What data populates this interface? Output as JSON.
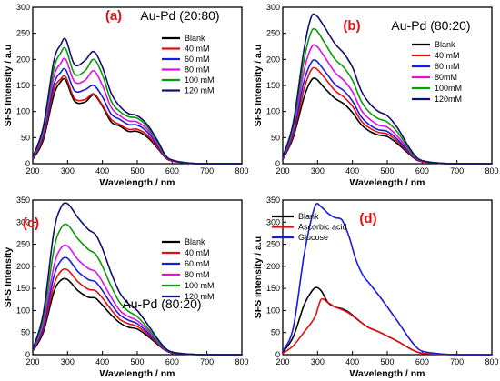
{
  "chart_data": [
    {
      "type": "line",
      "panel_label": "(a)",
      "title": "Au-Pd (20:80)",
      "xlabel": "Wavelength / nm",
      "ylabel": "SFS Intensity / a.u",
      "xlim": [
        200,
        800
      ],
      "ylim": [
        0,
        300
      ],
      "xticks": [
        200,
        300,
        400,
        500,
        600,
        700,
        800
      ],
      "yticks": [
        0,
        50,
        100,
        150,
        200,
        250,
        300
      ],
      "legend": "right",
      "x": [
        200,
        230,
        260,
        280,
        295,
        320,
        350,
        375,
        400,
        425,
        450,
        475,
        500,
        530,
        560,
        580,
        600,
        650,
        700,
        800
      ],
      "series": [
        {
          "name": "Blank",
          "color": "#000000",
          "values": [
            8,
            45,
            130,
            157,
            160,
            120,
            118,
            132,
            110,
            80,
            72,
            62,
            62,
            50,
            28,
            12,
            5,
            1,
            0,
            0
          ]
        },
        {
          "name": "40 mM",
          "color": "#e01010",
          "values": [
            9,
            50,
            140,
            162,
            166,
            125,
            123,
            134,
            112,
            85,
            75,
            66,
            66,
            54,
            30,
            13,
            5,
            1,
            0,
            0
          ]
        },
        {
          "name": "60 mM",
          "color": "#1a1adb",
          "values": [
            10,
            55,
            150,
            175,
            180,
            140,
            142,
            150,
            128,
            95,
            85,
            75,
            74,
            60,
            33,
            14,
            6,
            1,
            0,
            0
          ]
        },
        {
          "name": "80 mM",
          "color": "#e010e0",
          "values": [
            11,
            60,
            165,
            192,
            200,
            157,
            160,
            178,
            150,
            108,
            92,
            82,
            80,
            65,
            36,
            15,
            6,
            1,
            0,
            0
          ]
        },
        {
          "name": "100 mM",
          "color": "#0a9a0a",
          "values": [
            12,
            65,
            180,
            212,
            220,
            172,
            178,
            200,
            170,
            120,
            100,
            90,
            87,
            70,
            39,
            16,
            7,
            1,
            0,
            0
          ]
        },
        {
          "name": "120 mM",
          "color": "#10106e",
          "values": [
            13,
            70,
            195,
            228,
            238,
            190,
            198,
            215,
            185,
            135,
            110,
            96,
            92,
            74,
            42,
            17,
            7,
            1,
            0,
            0
          ]
        }
      ]
    },
    {
      "type": "line",
      "panel_label": "(b)",
      "title": "Au-Pd (80:20)",
      "xlabel": "Wavelength / nm",
      "ylabel": "SFS Intensity / a.u",
      "xlim": [
        200,
        800
      ],
      "ylim": [
        0,
        300
      ],
      "xticks": [
        200,
        300,
        400,
        500,
        600,
        700,
        800
      ],
      "yticks": [
        0,
        50,
        100,
        150,
        200,
        250,
        300
      ],
      "legend": "right",
      "x": [
        200,
        230,
        260,
        280,
        295,
        320,
        350,
        375,
        400,
        425,
        450,
        475,
        500,
        530,
        560,
        580,
        600,
        650,
        700,
        800
      ],
      "series": [
        {
          "name": "Blank",
          "color": "#000000",
          "values": [
            8,
            50,
            125,
            158,
            163,
            145,
            125,
            115,
            98,
            75,
            62,
            55,
            52,
            38,
            20,
            9,
            4,
            1,
            0,
            0
          ]
        },
        {
          "name": "40 mM",
          "color": "#e01010",
          "values": [
            9,
            55,
            140,
            178,
            183,
            165,
            140,
            128,
            110,
            82,
            68,
            60,
            57,
            42,
            22,
            10,
            4,
            1,
            0,
            0
          ]
        },
        {
          "name": "60 mM",
          "color": "#1a1adb",
          "values": [
            10,
            60,
            155,
            192,
            198,
            178,
            152,
            140,
            120,
            90,
            74,
            65,
            62,
            46,
            24,
            11,
            5,
            1,
            0,
            0
          ]
        },
        {
          "name": "80mM",
          "color": "#e010e0",
          "values": [
            11,
            66,
            175,
            220,
            227,
            205,
            175,
            160,
            138,
            103,
            85,
            74,
            70,
            52,
            27,
            12,
            5,
            1,
            0,
            0
          ]
        },
        {
          "name": "100mM",
          "color": "#0a9a0a",
          "values": [
            12,
            72,
            195,
            250,
            257,
            232,
            200,
            185,
            160,
            120,
            98,
            86,
            80,
            60,
            30,
            13,
            6,
            1,
            0,
            0
          ]
        },
        {
          "name": "120mM",
          "color": "#10106e",
          "values": [
            13,
            78,
            215,
            278,
            285,
            262,
            230,
            212,
            185,
            140,
            115,
            100,
            92,
            68,
            34,
            15,
            6,
            1,
            0,
            0
          ]
        }
      ]
    },
    {
      "type": "line",
      "panel_label": "(c)",
      "title": "Au-Pd (80:20)",
      "xlabel": "Wavelength / nm",
      "ylabel": "SFS Intensity",
      "xlim": [
        200,
        800
      ],
      "ylim": [
        0,
        350
      ],
      "xticks": [
        200,
        300,
        400,
        500,
        600,
        700,
        800
      ],
      "yticks": [
        0,
        50,
        100,
        150,
        200,
        250,
        300,
        350
      ],
      "legend": "right",
      "x": [
        200,
        230,
        260,
        280,
        300,
        330,
        360,
        380,
        400,
        425,
        450,
        475,
        500,
        530,
        560,
        580,
        600,
        650,
        700,
        800
      ],
      "series": [
        {
          "name": "Blank",
          "color": "#000000",
          "values": [
            8,
            50,
            140,
            168,
            170,
            145,
            130,
            128,
            112,
            90,
            72,
            62,
            58,
            42,
            22,
            10,
            4,
            1,
            0,
            0
          ]
        },
        {
          "name": "40 mM",
          "color": "#e01010",
          "values": [
            9,
            56,
            155,
            188,
            192,
            165,
            148,
            145,
            128,
            102,
            80,
            70,
            64,
            46,
            24,
            11,
            5,
            1,
            0,
            0
          ]
        },
        {
          "name": "60 mM",
          "color": "#1a1adb",
          "values": [
            10,
            62,
            175,
            212,
            218,
            188,
            170,
            165,
            145,
            115,
            90,
            78,
            70,
            50,
            26,
            12,
            5,
            1,
            0,
            0
          ]
        },
        {
          "name": "80 mM",
          "color": "#e010e0",
          "values": [
            11,
            70,
            198,
            240,
            246,
            215,
            195,
            188,
            165,
            130,
            100,
            86,
            77,
            55,
            28,
            13,
            5,
            1,
            0,
            0
          ]
        },
        {
          "name": "100 mM",
          "color": "#0a9a0a",
          "values": [
            12,
            80,
            235,
            285,
            294,
            262,
            238,
            228,
            200,
            155,
            118,
            98,
            86,
            60,
            30,
            14,
            6,
            1,
            0,
            0
          ]
        },
        {
          "name": "120 mM",
          "color": "#10106e",
          "values": [
            13,
            92,
            275,
            332,
            342,
            310,
            283,
            272,
            240,
            185,
            140,
            115,
            100,
            68,
            34,
            15,
            6,
            1,
            0,
            0
          ]
        }
      ]
    },
    {
      "type": "line",
      "panel_label": "(d)",
      "title": "",
      "xlabel": "Wavelength / nm",
      "ylabel": "SFS Intensity / a.u",
      "xlim": [
        200,
        800
      ],
      "ylim": [
        0,
        350
      ],
      "xticks": [
        200,
        300,
        400,
        500,
        600,
        700,
        800
      ],
      "yticks": [
        0,
        50,
        100,
        150,
        200,
        250,
        300,
        350
      ],
      "legend": "top-left",
      "x": [
        200,
        230,
        260,
        280,
        295,
        310,
        330,
        350,
        370,
        390,
        410,
        430,
        450,
        475,
        500,
        530,
        560,
        580,
        600,
        650,
        700,
        800
      ],
      "series": [
        {
          "name": "Blank",
          "color": "#000000",
          "values": [
            5,
            40,
            110,
            140,
            152,
            145,
            118,
            108,
            104,
            96,
            83,
            70,
            60,
            52,
            42,
            30,
            16,
            8,
            3,
            1,
            0,
            0
          ]
        },
        {
          "name": "Ascorbic acid",
          "color": "#e01010",
          "values": [
            3,
            20,
            50,
            70,
            90,
            125,
            118,
            108,
            102,
            94,
            82,
            70,
            60,
            52,
            42,
            30,
            16,
            8,
            3,
            1,
            0,
            0
          ]
        },
        {
          "name": "Glucose",
          "color": "#1a1adb",
          "values": [
            8,
            60,
            220,
            300,
            340,
            335,
            320,
            310,
            305,
            268,
            215,
            180,
            160,
            135,
            108,
            75,
            40,
            20,
            8,
            2,
            0,
            0
          ]
        }
      ]
    }
  ]
}
